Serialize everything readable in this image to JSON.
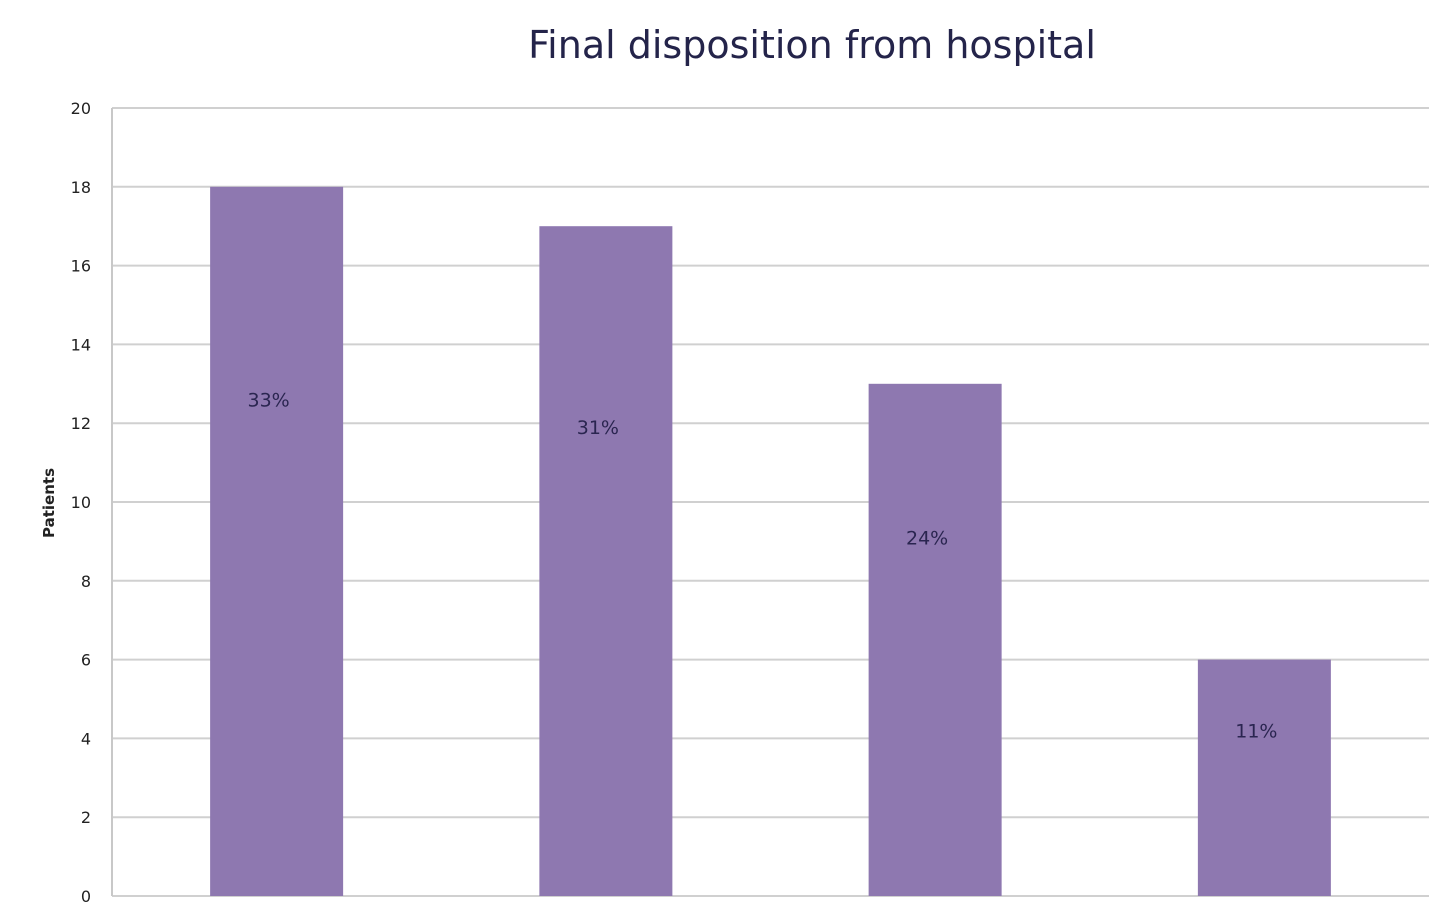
{
  "chart_data": {
    "type": "bar",
    "title": "Final disposition from hospital",
    "xlabel": "",
    "ylabel": "Patients",
    "ylim": [
      0,
      20
    ],
    "yticks": [
      0,
      2,
      4,
      6,
      8,
      10,
      12,
      14,
      16,
      18,
      20
    ],
    "grid": true,
    "categories": [
      "",
      "",
      "",
      ""
    ],
    "values": [
      18,
      17,
      13,
      6
    ],
    "data_labels": [
      "33%",
      "31%",
      "24%",
      "11%"
    ],
    "bar_color": "#8e78b0"
  }
}
